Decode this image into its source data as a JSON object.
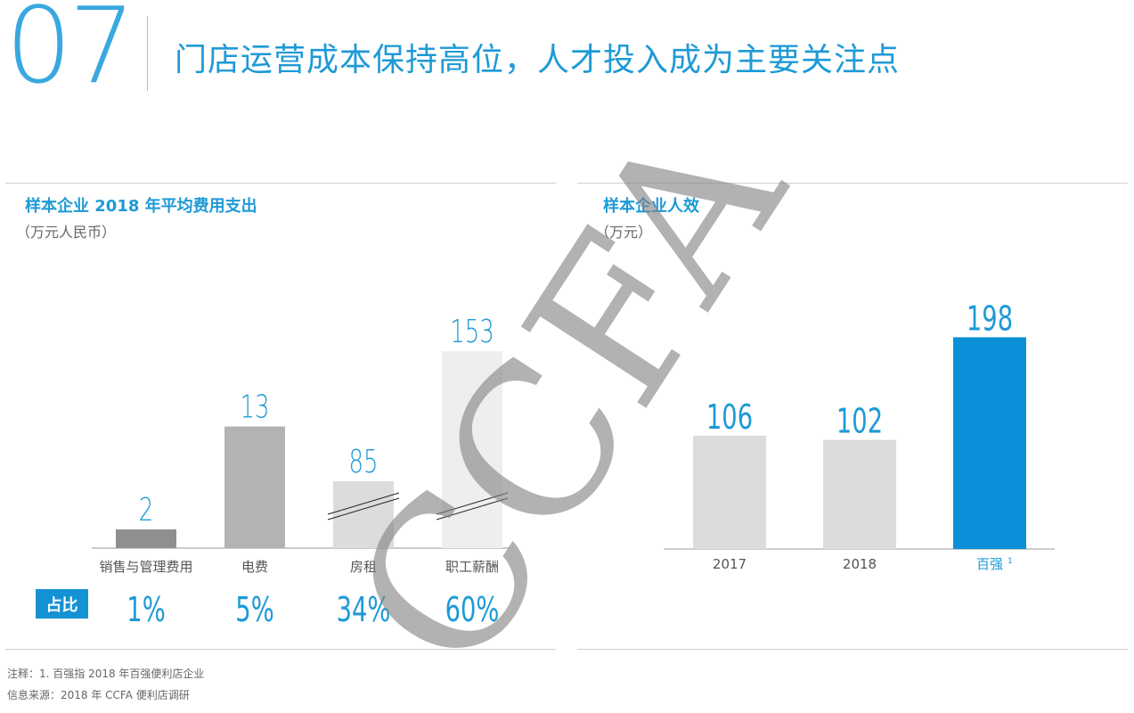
{
  "header": {
    "section_number": "07",
    "title": "门店运营成本保持高位，人才投入成为主要关注点"
  },
  "left_panel": {
    "title": "样本企业 2018 年平均费用支出",
    "unit": "（万元人民币）",
    "share_label": "占比"
  },
  "right_panel": {
    "title": "样本企业人效",
    "unit": "（万元）"
  },
  "notes": {
    "footnote": "注释：1. 百强指 2018 年百强便利店企业",
    "source": "信息来源：2018 年 CCFA 便利店调研"
  },
  "watermark": "CCFA",
  "colors": {
    "accent": "#1e9ad6",
    "highlight_bar": "#0a8fd8",
    "gray_bar": "#dcdcdc",
    "dark_gray_bar": "#b3b3b3",
    "darker_gray_bar": "#8f8f8f",
    "light_bar": "#eeeeee"
  },
  "chart_data": [
    {
      "type": "bar",
      "title": "样本企业 2018 年平均费用支出",
      "ylabel": "（万元人民币）",
      "categories": [
        "销售与管理费用",
        "电费",
        "房租",
        "职工薪酬"
      ],
      "values": [
        2,
        13,
        85,
        153
      ],
      "data_labels": [
        "2",
        "13",
        "85",
        "153"
      ],
      "shares": [
        "1%",
        "5%",
        "34%",
        "60%"
      ],
      "axis_break": [
        false,
        false,
        true,
        true
      ]
    },
    {
      "type": "bar",
      "title": "样本企业人效",
      "ylabel": "（万元）",
      "categories": [
        "2017",
        "2018",
        "百强"
      ],
      "category_footnotes": [
        "",
        "",
        "1"
      ],
      "values": [
        106,
        102,
        198
      ],
      "data_labels": [
        "106",
        "102",
        "198"
      ],
      "highlight_index": 2
    }
  ]
}
